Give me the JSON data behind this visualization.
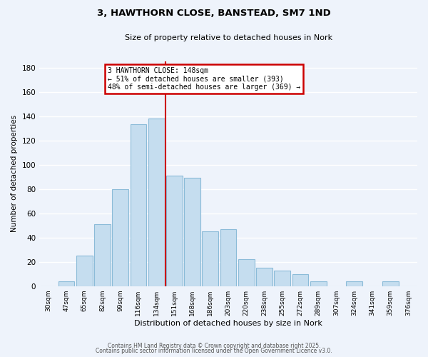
{
  "title": "3, HAWTHORN CLOSE, BANSTEAD, SM7 1ND",
  "subtitle": "Size of property relative to detached houses in Nork",
  "xlabel": "Distribution of detached houses by size in Nork",
  "ylabel": "Number of detached properties",
  "bar_color": "#c5ddef",
  "bar_edge_color": "#8bbbd8",
  "background_color": "#eef3fb",
  "grid_color": "#ffffff",
  "categories": [
    "30sqm",
    "47sqm",
    "65sqm",
    "82sqm",
    "99sqm",
    "116sqm",
    "134sqm",
    "151sqm",
    "168sqm",
    "186sqm",
    "203sqm",
    "220sqm",
    "238sqm",
    "255sqm",
    "272sqm",
    "289sqm",
    "307sqm",
    "324sqm",
    "341sqm",
    "359sqm",
    "376sqm"
  ],
  "values": [
    0,
    4,
    25,
    51,
    80,
    133,
    138,
    91,
    89,
    45,
    47,
    22,
    15,
    13,
    10,
    4,
    0,
    4,
    0,
    4,
    0
  ],
  "ylim": [
    0,
    185
  ],
  "yticks": [
    0,
    20,
    40,
    60,
    80,
    100,
    120,
    140,
    160,
    180
  ],
  "red_line_index": 6.5,
  "annotation_title": "3 HAWTHORN CLOSE: 148sqm",
  "annotation_line1": "← 51% of detached houses are smaller (393)",
  "annotation_line2": "48% of semi-detached houses are larger (369) →",
  "annotation_box_color": "#ffffff",
  "annotation_box_edge": "#cc0000",
  "footnote1": "Contains HM Land Registry data © Crown copyright and database right 2025.",
  "footnote2": "Contains public sector information licensed under the Open Government Licence v3.0."
}
